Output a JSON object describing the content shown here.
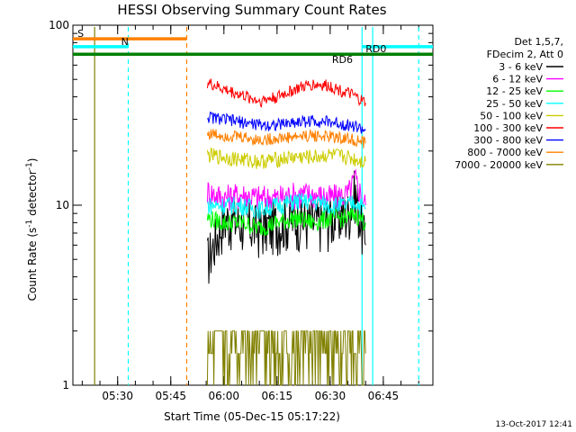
{
  "chart_data": {
    "type": "line",
    "title": "HESSI Observing Summary Count Rates",
    "xlabel": "Start Time (05-Dec-15 05:17:22)",
    "ylabel": "Count Rate (s⁻¹ detector⁻¹)",
    "ylabel_main": "Count Rate (s",
    "ylabel_sup1": "-1",
    "ylabel_mid": " detector",
    "ylabel_sup2": "-1",
    "ylabel_end": ")",
    "y_scale": "log",
    "ylim": [
      1,
      100
    ],
    "xlim": [
      "05:17:22",
      "06:59:00"
    ],
    "x_ticks": [
      "05:30",
      "05:45",
      "06:00",
      "06:15",
      "06:30",
      "06:45"
    ],
    "y_ticks": [
      "1",
      "10",
      "100"
    ],
    "legend_header": [
      "Det 1,5,7,",
      "FDecim 2, Att 0"
    ],
    "legend_position": "right",
    "timestamp": "13-Oct-2017 12:41",
    "series": [
      {
        "name": "3 - 6 keV",
        "color": "#000000",
        "x": [
          "05:55:20",
          "06:00",
          "06:05",
          "06:10",
          "06:15",
          "06:20",
          "06:25",
          "06:30",
          "06:35",
          "06:37",
          "06:40"
        ],
        "values": [
          5,
          8.5,
          8,
          7.5,
          8,
          8.5,
          8,
          8.5,
          9,
          12,
          6
        ]
      },
      {
        "name": "6 - 12 keV",
        "color": "#ff00ff",
        "x": [
          "05:55:20",
          "06:00",
          "06:05",
          "06:10",
          "06:15",
          "06:20",
          "06:25",
          "06:30",
          "06:35",
          "06:37",
          "06:40"
        ],
        "values": [
          12,
          11,
          11.5,
          11,
          11,
          11.5,
          11.5,
          11,
          11.5,
          14,
          10
        ]
      },
      {
        "name": "12 - 25 keV",
        "color": "#00ff00",
        "x": [
          "05:55:20",
          "06:00",
          "06:05",
          "06:10",
          "06:15",
          "06:20",
          "06:25",
          "06:30",
          "06:35",
          "06:37",
          "06:40"
        ],
        "values": [
          8.5,
          8,
          8,
          7.5,
          8,
          8.5,
          8,
          8.5,
          8.5,
          9,
          8
        ]
      },
      {
        "name": "25 - 50 keV",
        "color": "#00ffff",
        "x": [
          "05:55:20",
          "06:00",
          "06:05",
          "06:10",
          "06:15",
          "06:20",
          "06:25",
          "06:30",
          "06:35",
          "06:37",
          "06:40"
        ],
        "values": [
          10,
          10,
          10,
          9.5,
          10,
          10.5,
          10.5,
          10,
          10,
          10.5,
          9.5
        ]
      },
      {
        "name": "50 - 100 keV",
        "color": "#cccc00",
        "x": [
          "05:55:20",
          "06:00",
          "06:05",
          "06:10",
          "06:15",
          "06:20",
          "06:25",
          "06:30",
          "06:35",
          "06:37",
          "06:40"
        ],
        "values": [
          19,
          18.5,
          18,
          17.5,
          18,
          18.5,
          18.5,
          19,
          18.5,
          18,
          17.5
        ]
      },
      {
        "name": "100 - 300 keV",
        "color": "#ff0000",
        "x": [
          "05:55:20",
          "06:00",
          "06:05",
          "06:10",
          "06:15",
          "06:20",
          "06:25",
          "06:30",
          "06:35",
          "06:37",
          "06:40"
        ],
        "values": [
          48,
          44,
          41,
          38,
          40,
          44,
          47,
          46,
          42,
          40,
          37
        ]
      },
      {
        "name": "300 - 800 keV",
        "color": "#0000ff",
        "x": [
          "05:55:20",
          "06:00",
          "06:05",
          "06:10",
          "06:15",
          "06:20",
          "06:25",
          "06:30",
          "06:35",
          "06:37",
          "06:40"
        ],
        "values": [
          31,
          30,
          29,
          28,
          28,
          29,
          29.5,
          29,
          28,
          27.5,
          26
        ]
      },
      {
        "name": "800 - 7000 keV",
        "color": "#ff8000",
        "x": [
          "05:55:20",
          "06:00",
          "06:05",
          "06:10",
          "06:15",
          "06:20",
          "06:25",
          "06:30",
          "06:35",
          "06:37",
          "06:40"
        ],
        "values": [
          25,
          24.5,
          24,
          23,
          23.5,
          24,
          24.5,
          24,
          23.5,
          23,
          22
        ]
      },
      {
        "name": "7000 - 20000 keV",
        "color": "#808000",
        "x": [
          "05:55:20",
          "06:00",
          "06:05",
          "06:10",
          "06:15",
          "06:20",
          "06:25",
          "06:30",
          "06:35",
          "06:37",
          "06:40"
        ],
        "values": [
          2,
          2,
          1.5,
          1.2,
          2,
          2,
          2,
          2,
          2,
          1.8,
          1.5
        ]
      }
    ],
    "annotations": [
      {
        "text": "S",
        "color": "#ff8000"
      },
      {
        "text": "N",
        "color": "#00ffff"
      },
      {
        "text": "RD0",
        "color": "#000000"
      },
      {
        "text": "RD6",
        "color": "#008000"
      }
    ],
    "flag_bars": [
      {
        "name": "S",
        "color": "#ff8000",
        "x_start": "05:17:22",
        "x_end": "05:49:30",
        "y": 84
      },
      {
        "name": "N",
        "color": "#00ffff",
        "x_start": "05:17:22",
        "x_end": "05:33:00",
        "y": 76
      },
      {
        "name": "N",
        "color": "#00ffff",
        "x_start": "06:39:00",
        "x_end": "06:59:00",
        "y": 76
      },
      {
        "name": "RD6",
        "color": "#008000",
        "x_start": "05:17:22",
        "x_end": "06:59:00",
        "y": 69
      }
    ],
    "vertical_markers": [
      {
        "x": "05:23:30",
        "color": "#808000",
        "style": "solid"
      },
      {
        "x": "05:33:00",
        "color": "#00ffff",
        "style": "dashed"
      },
      {
        "x": "05:49:30",
        "color": "#ff8000",
        "style": "dashed"
      },
      {
        "x": "06:39:00",
        "color": "#00ffff",
        "style": "solid"
      },
      {
        "x": "06:42:00",
        "color": "#00ffff",
        "style": "solid"
      },
      {
        "x": "06:55:00",
        "color": "#00ffff",
        "style": "dashed"
      }
    ]
  }
}
